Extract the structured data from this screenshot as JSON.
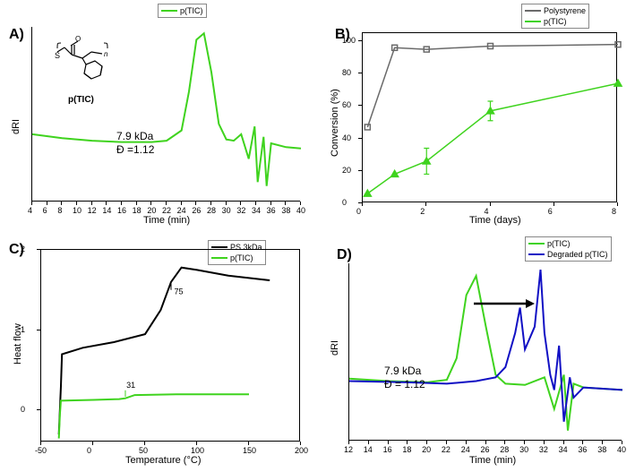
{
  "colors": {
    "green": "#3fd31e",
    "black": "#000000",
    "gray": "#6a6a6a",
    "blue": "#1110c4",
    "bg": "#ffffff"
  },
  "panelA": {
    "label": "A)",
    "type": "line",
    "legend": [
      {
        "label": "p(TIC)",
        "color": "#3fd31e"
      }
    ],
    "xlabel": "Time (min)",
    "ylabel": "dRI",
    "annotation": "7.9 kDa\nĐ =1.12",
    "molecule_caption": "p(TIC)",
    "xlim": [
      4,
      40
    ],
    "xtick_step": 2,
    "curve": [
      [
        4,
        0.22
      ],
      [
        8,
        0.19
      ],
      [
        12,
        0.17
      ],
      [
        16,
        0.16
      ],
      [
        20,
        0.16
      ],
      [
        22,
        0.17
      ],
      [
        24,
        0.25
      ],
      [
        25,
        0.55
      ],
      [
        26,
        0.95
      ],
      [
        27,
        1.0
      ],
      [
        28,
        0.7
      ],
      [
        29,
        0.3
      ],
      [
        30,
        0.18
      ],
      [
        31,
        0.17
      ],
      [
        32,
        0.22
      ],
      [
        33,
        0.03
      ],
      [
        33.8,
        0.28
      ],
      [
        34.2,
        -0.15
      ],
      [
        35,
        0.2
      ],
      [
        35.4,
        -0.18
      ],
      [
        36,
        0.15
      ],
      [
        38,
        0.12
      ],
      [
        40,
        0.11
      ]
    ]
  },
  "panelB": {
    "label": "B)",
    "type": "line",
    "legend": [
      {
        "label": "Polystyrene",
        "color": "#6a6a6a",
        "marker": "square"
      },
      {
        "label": "p(TIC)",
        "color": "#3fd31e",
        "marker": "triangle"
      }
    ],
    "xlabel": "Time (days)",
    "ylabel": "Conversion (%)",
    "xlim": [
      0,
      8
    ],
    "xtick_step": 2,
    "ylim": [
      0,
      105
    ],
    "ytick_step": 20,
    "seriesPS": [
      [
        0.15,
        47
      ],
      [
        1,
        96
      ],
      [
        2,
        95
      ],
      [
        4,
        97
      ],
      [
        8,
        98
      ]
    ],
    "seriesPTIC": [
      [
        0.15,
        6
      ],
      [
        1,
        18
      ],
      [
        2,
        26
      ],
      [
        4,
        57
      ],
      [
        8,
        74
      ]
    ],
    "errPTIC": [
      [
        2,
        8
      ],
      [
        4,
        6
      ]
    ]
  },
  "panelC": {
    "label": "C)",
    "type": "line",
    "legend": [
      {
        "label": "PS 3kDa",
        "color": "#000000"
      },
      {
        "label": "p(TIC)",
        "color": "#3fd31e"
      }
    ],
    "xlabel": "Temperature (°C)",
    "ylabel": "Heat flow",
    "xlim": [
      -50,
      200
    ],
    "xtick_step": 50,
    "ylim": [
      -0.4,
      2
    ],
    "ytick_step": 1,
    "tgPS": "75",
    "tgPTIC": "31",
    "curvePS": [
      [
        -33,
        -0.3
      ],
      [
        -31,
        0.3
      ],
      [
        -30,
        0.7
      ],
      [
        -10,
        0.78
      ],
      [
        20,
        0.85
      ],
      [
        50,
        0.95
      ],
      [
        65,
        1.25
      ],
      [
        75,
        1.6
      ],
      [
        85,
        1.78
      ],
      [
        100,
        1.75
      ],
      [
        130,
        1.68
      ],
      [
        170,
        1.62
      ]
    ],
    "curvePTIC": [
      [
        -33,
        -0.35
      ],
      [
        -32,
        -0.05
      ],
      [
        -31,
        0.12
      ],
      [
        0,
        0.13
      ],
      [
        25,
        0.14
      ],
      [
        31,
        0.15
      ],
      [
        40,
        0.19
      ],
      [
        80,
        0.2
      ],
      [
        150,
        0.2
      ]
    ]
  },
  "panelD": {
    "label": "D)",
    "type": "line",
    "legend": [
      {
        "label": "p(TIC)",
        "color": "#3fd31e"
      },
      {
        "label": "Degraded p(TIC)",
        "color": "#1110c4"
      }
    ],
    "xlabel": "Time (min)",
    "ylabel": "dRI",
    "annotation": "7.9 kDa\nĐ = 1.12",
    "xlim": [
      12,
      40
    ],
    "xtick_step": 2,
    "curveGreen": [
      [
        12,
        0.19
      ],
      [
        16,
        0.17
      ],
      [
        20,
        0.16
      ],
      [
        22,
        0.18
      ],
      [
        23,
        0.35
      ],
      [
        24,
        0.85
      ],
      [
        25,
        1.0
      ],
      [
        26,
        0.6
      ],
      [
        27,
        0.22
      ],
      [
        28,
        0.15
      ],
      [
        30,
        0.14
      ],
      [
        32,
        0.2
      ],
      [
        33,
        -0.05
      ],
      [
        34,
        0.22
      ],
      [
        34.4,
        -0.22
      ],
      [
        35,
        0.15
      ],
      [
        36,
        0.12
      ],
      [
        38,
        0.11
      ],
      [
        40,
        0.1
      ]
    ],
    "curveBlue": [
      [
        12,
        0.17
      ],
      [
        18,
        0.16
      ],
      [
        22,
        0.15
      ],
      [
        25,
        0.17
      ],
      [
        27,
        0.2
      ],
      [
        28,
        0.28
      ],
      [
        29,
        0.55
      ],
      [
        29.5,
        0.75
      ],
      [
        30,
        0.42
      ],
      [
        31,
        0.6
      ],
      [
        31.6,
        1.05
      ],
      [
        32,
        0.55
      ],
      [
        32.6,
        0.22
      ],
      [
        33,
        0.1
      ],
      [
        33.5,
        0.45
      ],
      [
        34,
        -0.15
      ],
      [
        34.6,
        0.2
      ],
      [
        35,
        0.04
      ],
      [
        36,
        0.12
      ],
      [
        38,
        0.11
      ],
      [
        40,
        0.1
      ]
    ]
  }
}
